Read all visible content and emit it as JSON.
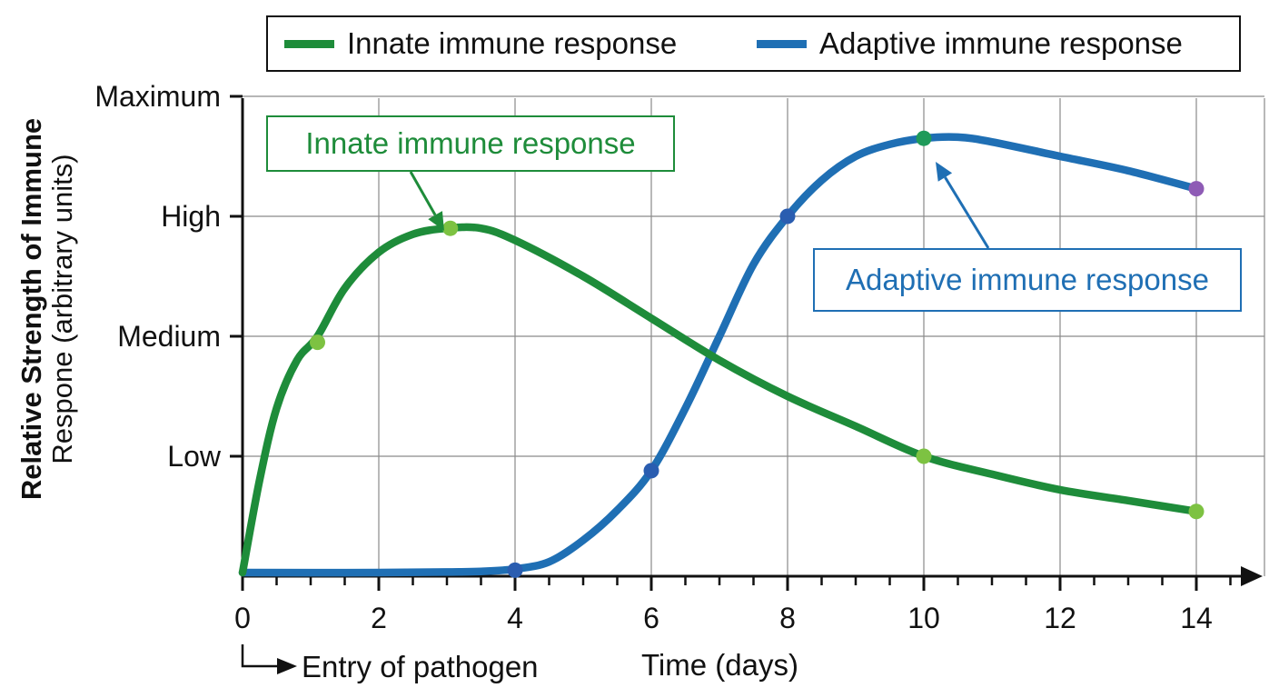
{
  "chart_data": {
    "type": "line",
    "xlabel": "Time (days)",
    "ylabel": {
      "bold": "Relative Strength of Immune",
      "normal": "Respone (arbitrary units)"
    },
    "x_ticks": [
      0,
      2,
      4,
      6,
      8,
      10,
      12,
      14
    ],
    "xlim": [
      0,
      15.4
    ],
    "y_categories": [
      {
        "label": "Low",
        "value": 1
      },
      {
        "label": "Medium",
        "value": 2
      },
      {
        "label": "High",
        "value": 3
      },
      {
        "label": "Maximum",
        "value": 4
      }
    ],
    "ylim": [
      0,
      4
    ],
    "grid": true,
    "legend_position": "top",
    "series": [
      {
        "name": "Innate immune response",
        "color": "#1e8c3a",
        "curve": [
          [
            0,
            0.03
          ],
          [
            0.25,
            0.8
          ],
          [
            0.5,
            1.4
          ],
          [
            0.8,
            1.8
          ],
          [
            1.1,
            2.0
          ],
          [
            1.5,
            2.4
          ],
          [
            2.0,
            2.7
          ],
          [
            2.5,
            2.85
          ],
          [
            3.0,
            2.9
          ],
          [
            3.5,
            2.9
          ],
          [
            4.0,
            2.8
          ],
          [
            5.0,
            2.5
          ],
          [
            6.0,
            2.15
          ],
          [
            7.0,
            1.8
          ],
          [
            8.0,
            1.5
          ],
          [
            9.0,
            1.25
          ],
          [
            10.0,
            1.0
          ],
          [
            11.0,
            0.85
          ],
          [
            12.0,
            0.72
          ],
          [
            13.0,
            0.63
          ],
          [
            14.0,
            0.54
          ]
        ],
        "markers": [
          {
            "x": 1.1,
            "y": 1.95,
            "color": "#7dc242"
          },
          {
            "x": 3.05,
            "y": 2.9,
            "color": "#7dc242"
          },
          {
            "x": 10.0,
            "y": 1.0,
            "color": "#7dc242"
          },
          {
            "x": 14.0,
            "y": 0.54,
            "color": "#7dc242"
          }
        ]
      },
      {
        "name": "Adaptive immune response",
        "color": "#1f6fb4",
        "curve": [
          [
            0,
            0.03
          ],
          [
            2,
            0.03
          ],
          [
            3,
            0.035
          ],
          [
            3.5,
            0.04
          ],
          [
            4,
            0.06
          ],
          [
            4.5,
            0.12
          ],
          [
            5,
            0.3
          ],
          [
            5.5,
            0.55
          ],
          [
            6,
            0.88
          ],
          [
            6.5,
            1.4
          ],
          [
            7,
            2.0
          ],
          [
            7.5,
            2.6
          ],
          [
            8,
            3.0
          ],
          [
            8.5,
            3.3
          ],
          [
            9,
            3.5
          ],
          [
            9.5,
            3.6
          ],
          [
            10,
            3.65
          ],
          [
            10.5,
            3.66
          ],
          [
            11,
            3.62
          ],
          [
            12,
            3.5
          ],
          [
            13,
            3.38
          ],
          [
            14,
            3.23
          ]
        ],
        "markers": [
          {
            "x": 4.0,
            "y": 0.05,
            "color": "#2a5db0"
          },
          {
            "x": 6.0,
            "y": 0.88,
            "color": "#2a5db0"
          },
          {
            "x": 8.0,
            "y": 3.0,
            "color": "#2a5db0"
          },
          {
            "x": 10.0,
            "y": 3.65,
            "color": "#1f9a5a"
          },
          {
            "x": 14.0,
            "y": 3.23,
            "color": "#8e5bb5"
          }
        ]
      }
    ],
    "annotations": [
      {
        "text": "Innate immune response",
        "color": "#1e8c3a",
        "points_to": {
          "x": 3.05,
          "y": 2.9
        }
      },
      {
        "text": "Adaptive immune response",
        "color": "#1f6fb4",
        "points_to": {
          "x": 10.1,
          "y": 3.6
        }
      },
      {
        "text": "Entry of pathogen",
        "points_to": {
          "x": 0,
          "y": 0
        }
      }
    ]
  }
}
